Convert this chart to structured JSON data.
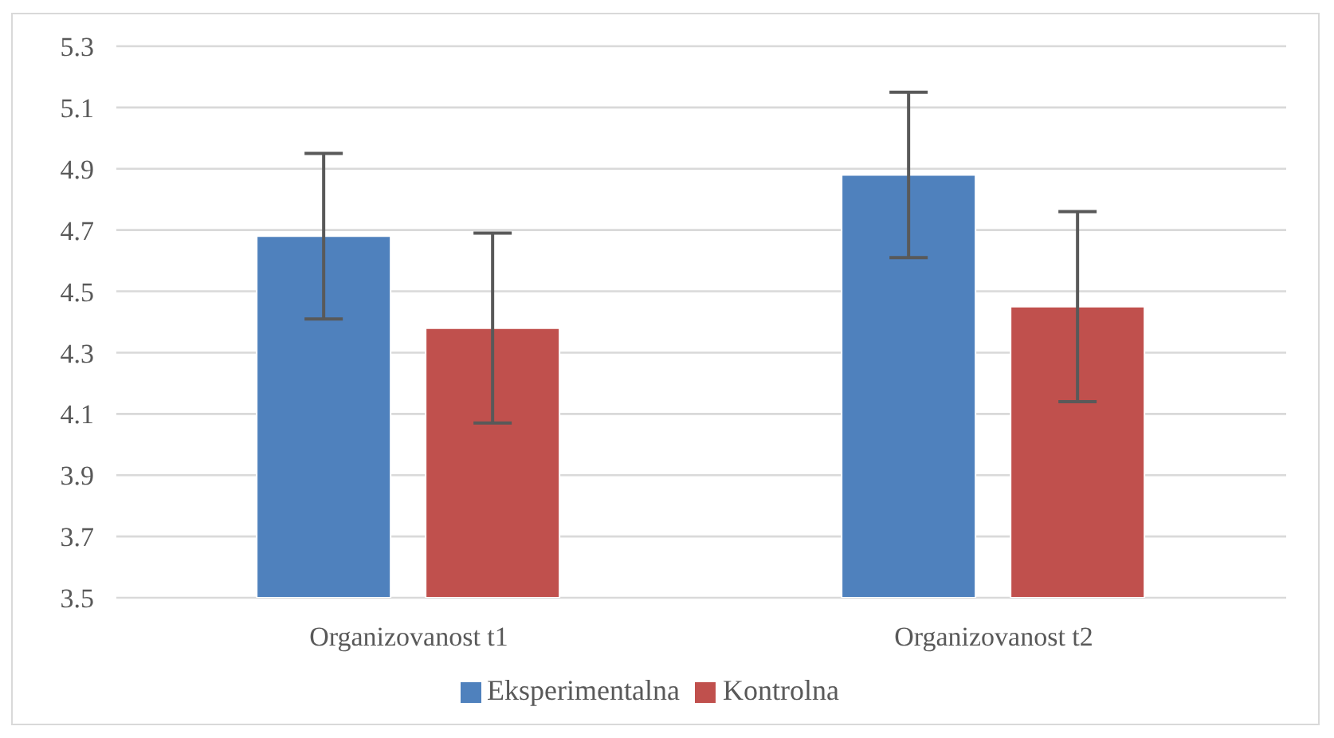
{
  "chart_data": {
    "type": "bar",
    "categories": [
      "Organizovanost t1",
      "Organizovanost t2"
    ],
    "series": [
      {
        "name": "Eksperimentalna",
        "color": "#4f81bd",
        "values": [
          4.68,
          4.88
        ],
        "errors": [
          0.27,
          0.27
        ]
      },
      {
        "name": "Kontrolna",
        "color": "#c0504d",
        "values": [
          4.38,
          4.45
        ],
        "errors": [
          0.31,
          0.31
        ]
      }
    ],
    "ylim": [
      3.5,
      5.3
    ],
    "yticks": [
      3.5,
      3.7,
      3.9,
      4.1,
      4.3,
      4.5,
      4.7,
      4.9,
      5.1,
      5.3
    ],
    "grid": "y",
    "legend": "bottom"
  }
}
